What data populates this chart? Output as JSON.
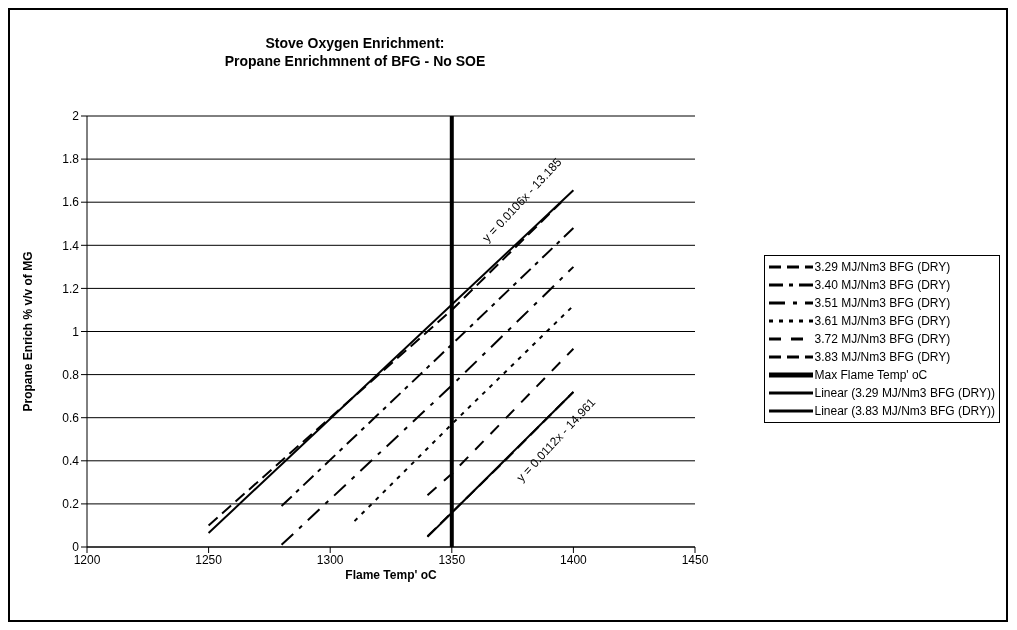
{
  "chart_data": {
    "type": "line",
    "title": "Stove Oxygen Enrichment:\nPropane Enrichmnent of BFG - No SOE",
    "xlabel": "Flame Temp' oC",
    "ylabel": "Propane Enrich % v/v of MG",
    "xlim": [
      1200,
      1450
    ],
    "xticks": [
      1200,
      1250,
      1300,
      1350,
      1400,
      1450
    ],
    "ylim": [
      0,
      2
    ],
    "yticks": [
      0,
      0.2,
      0.4,
      0.6,
      0.8,
      1,
      1.2,
      1.4,
      1.6,
      1.8,
      2
    ],
    "grid": "y",
    "legend": "right",
    "marker": "none",
    "series": [
      {
        "name": "3.29 MJ/Nm3 BFG (DRY)",
        "color": "#000000",
        "line_style": "dashed",
        "x": [
          1250,
          1300,
          1350,
          1395
        ],
        "values": [
          0.1,
          0.6,
          1.1,
          1.6
        ]
      },
      {
        "name": "3.40 MJ/Nm3 BFG (DRY)",
        "color": "#000000",
        "line_style": "dashed",
        "x": [
          1280,
          1350,
          1400
        ],
        "values": [
          0.19,
          0.94,
          1.48
        ]
      },
      {
        "name": "3.51 MJ/Nm3 BFG (DRY)",
        "color": "#000000",
        "line_style": "dashed",
        "x": [
          1280,
          1350,
          1400
        ],
        "values": [
          0.01,
          0.75,
          1.3
        ]
      },
      {
        "name": "3.61 MJ/Nm3 BFG (DRY)",
        "color": "#000000",
        "line_style": "dotted",
        "x": [
          1310,
          1350,
          1400
        ],
        "values": [
          0.12,
          0.57,
          1.12
        ]
      },
      {
        "name": "3.72 MJ/Nm3 BFG (DRY)",
        "color": "#000000",
        "line_style": "dashed",
        "x": [
          1340,
          1350,
          1400
        ],
        "values": [
          0.24,
          0.34,
          0.92
        ]
      },
      {
        "name": "3.83 MJ/Nm3 BFG (DRY)",
        "color": "#000000",
        "line_style": "dashed",
        "x": [
          1340,
          1370,
          1400
        ],
        "values": [
          0.05,
          0.38,
          0.72
        ]
      },
      {
        "name": "Max Flame Temp' oC",
        "color": "#000000",
        "line_style": "solid",
        "x": [
          1350,
          1350
        ],
        "values": [
          0,
          2
        ]
      },
      {
        "name": "Linear (3.29 MJ/Nm3 BFG (DRY))",
        "color": "#000000",
        "line_style": "solid",
        "x": [
          1250,
          1400
        ],
        "values": [
          0.065,
          1.655
        ]
      },
      {
        "name": "Linear (3.83 MJ/Nm3 BFG (DRY))",
        "color": "#000000",
        "line_style": "solid",
        "x": [
          1340,
          1400
        ],
        "values": [
          0.047,
          0.719
        ]
      }
    ],
    "annotations": [
      "y = 0.0106x - 13.185",
      "y = 0.0112x - 14.961"
    ]
  }
}
